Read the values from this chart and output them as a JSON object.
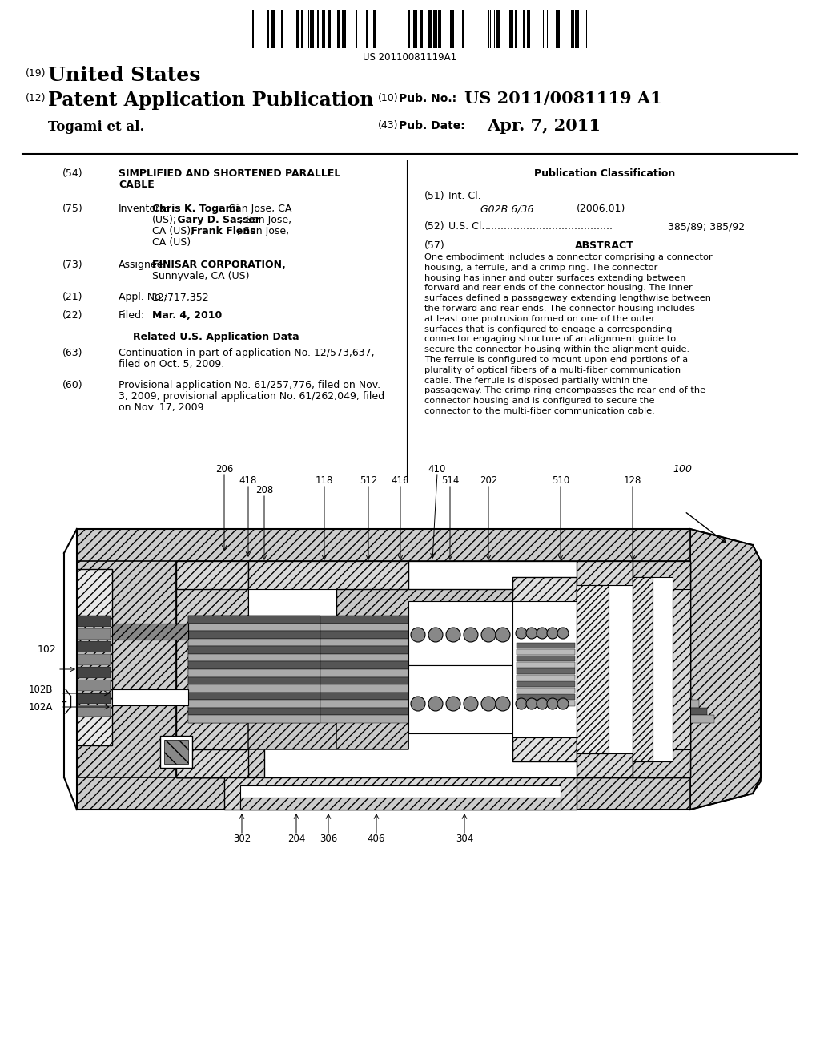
{
  "bg_color": "#ffffff",
  "barcode_text": "US 20110081119A1",
  "pub_no_value": "US 2011/0081119 A1",
  "pub_date_value": "Apr. 7, 2011",
  "abstract_text": "One embodiment includes a connector comprising a connector housing, a ferrule, and a crimp ring. The connector housing has inner and outer surfaces extending between forward and rear ends of the connector housing. The inner surfaces defined a passageway extending lengthwise between the forward and rear ends. The connector housing includes at least one protrusion formed on one of the outer surfaces that is configured to engage a corresponding connector engaging structure of an alignment guide to secure the connector housing within the alignment guide. The ferrule is configured to mount upon end portions of a plurality of optical fibers of a multi-fiber communication cable. The ferrule is disposed partially within the passageway. The crimp ring encompasses the rear end of the connector housing and is configured to secure the connector to the multi-fiber communication cable.",
  "inventors_bold": [
    "Chris K. Togami",
    "Gary D. Sasser",
    "Frank Flens"
  ],
  "field_51_class": "G02B 6/36",
  "field_51_year": "(2006.01)",
  "field_52_dots": "........................................",
  "field_52_value": "385/89; 385/92"
}
